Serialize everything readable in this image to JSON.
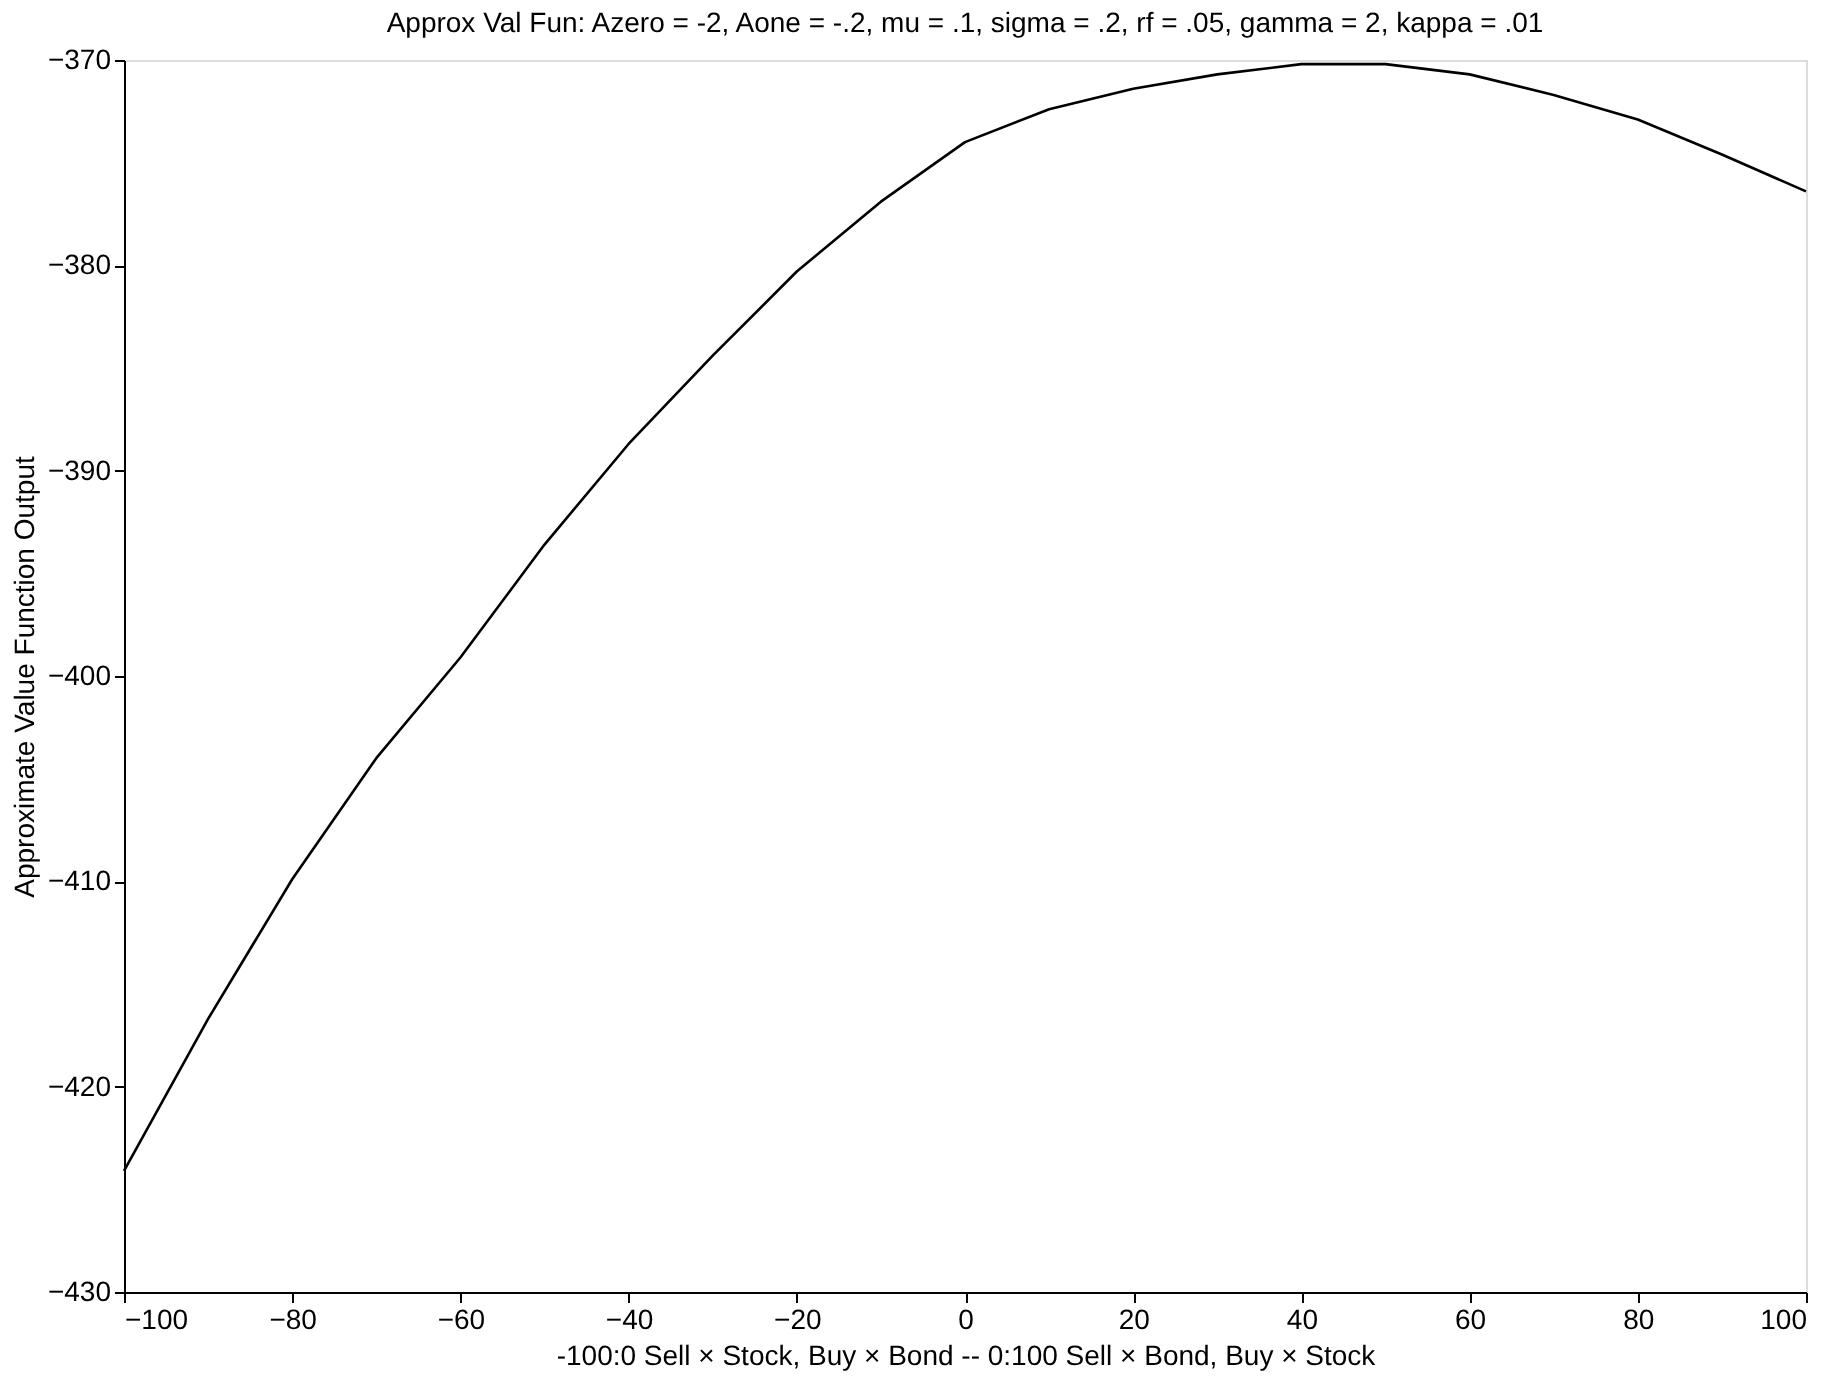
{
  "chart_data": {
    "type": "line",
    "title": "Approx Val Fun: Azero = -2, Aone = -.2, mu = .1, sigma = .2, rf = .05, gamma = 2, kappa = .01",
    "xlabel": "-100:0 Sell × Stock, Buy × Bond -- 0:100 Sell × Bond, Buy × Stock",
    "ylabel": "Approximate Value Function Output",
    "x": [
      -100,
      -90,
      -80,
      -70,
      -60,
      -50,
      -40,
      -30,
      -20,
      -10,
      0,
      10,
      20,
      30,
      40,
      50,
      60,
      70,
      80,
      90,
      100
    ],
    "series": [
      {
        "color": "#000000",
        "values": [
          -424.1,
          -416.7,
          -409.9,
          -404.0,
          -399.1,
          -393.6,
          -388.7,
          -384.4,
          -380.3,
          -376.9,
          -374.0,
          -372.4,
          -371.4,
          -370.7,
          -370.2,
          -370.2,
          -370.7,
          -371.7,
          -372.9,
          -374.6,
          -376.4
        ]
      }
    ],
    "xlim": [
      -100,
      100
    ],
    "ylim": [
      -430,
      -370
    ],
    "xticks": [
      -100,
      -80,
      -60,
      -40,
      -20,
      0,
      20,
      40,
      60,
      80,
      100
    ],
    "yticks": [
      -430,
      -420,
      -410,
      -400,
      -390,
      -380,
      -370
    ],
    "grid": false,
    "marker": "none",
    "line_style": "solid"
  }
}
